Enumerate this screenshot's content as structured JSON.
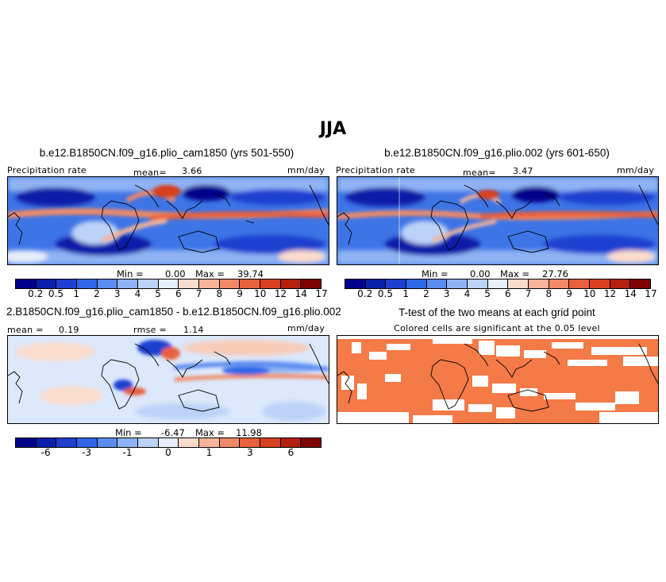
{
  "season": "JJA",
  "panels": {
    "p1": {
      "title": "b.e12.B1850CN.f09_g16.plio_cam1850 (yrs 501-550)",
      "var_label": "Precipitation rate",
      "mean_label": "mean=",
      "mean_value": "3.66",
      "units": "mm/day",
      "min_label": "Min =",
      "min_value": "0.00",
      "max_label": "Max =",
      "max_value": "39.74"
    },
    "p2": {
      "title": "b.e12.B1850CN.f09_g16.plio.002 (yrs 601-650)",
      "var_label": "Precipitation rate",
      "mean_label": "mean=",
      "mean_value": "3.47",
      "units": "mm/day",
      "min_label": "Min =",
      "min_value": "0.00",
      "max_label": "Max =",
      "max_value": "27.76"
    },
    "p3": {
      "title": "2.B1850CN.f09_g16.plio_cam1850 - b.e12.B1850CN.f09_g16.plio.002",
      "mean_label": "mean =",
      "mean_value": "0.19",
      "rmse_label": "rmse =",
      "rmse_value": "1.14",
      "units": "mm/day",
      "min_label": "Min =",
      "min_value": "-6.47",
      "max_label": "Max =",
      "max_value": "11.98"
    },
    "p4": {
      "title": "T-test of the two means at each grid point",
      "subtitle": "Colored cells are significant at the 0.05 level"
    }
  },
  "colorbars": {
    "precip": {
      "colors": [
        "#00008b",
        "#0a1fa8",
        "#1f3fd0",
        "#2f66e8",
        "#5b8cf0",
        "#8fb2f4",
        "#bcd2f8",
        "#e6eefb",
        "#fbdccc",
        "#f7b49a",
        "#f08a66",
        "#e8603c",
        "#d8401f",
        "#b4200e",
        "#7e0202"
      ],
      "ticks": [
        "0.2",
        "0.5",
        "1",
        "2",
        "3",
        "4",
        "5",
        "6",
        "7",
        "8",
        "9",
        "10",
        "12",
        "14",
        "17"
      ]
    },
    "diff": {
      "colors": [
        "#00008b",
        "#0a1fa8",
        "#1f3fd0",
        "#2f66e8",
        "#5b8cf0",
        "#8fb2f4",
        "#bcd2f8",
        "#e6eefb",
        "#fbdccc",
        "#f7b49a",
        "#f08a66",
        "#e8603c",
        "#d8401f",
        "#b4200e",
        "#7e0202"
      ],
      "ticks": [
        "-6",
        "-3",
        "-1",
        "0",
        "1",
        "3",
        "6"
      ],
      "tick_index": [
        1.5,
        3.5,
        5.5,
        7.5,
        9.5,
        11.5,
        13.5
      ]
    }
  },
  "significance_color": "#f47a48"
}
